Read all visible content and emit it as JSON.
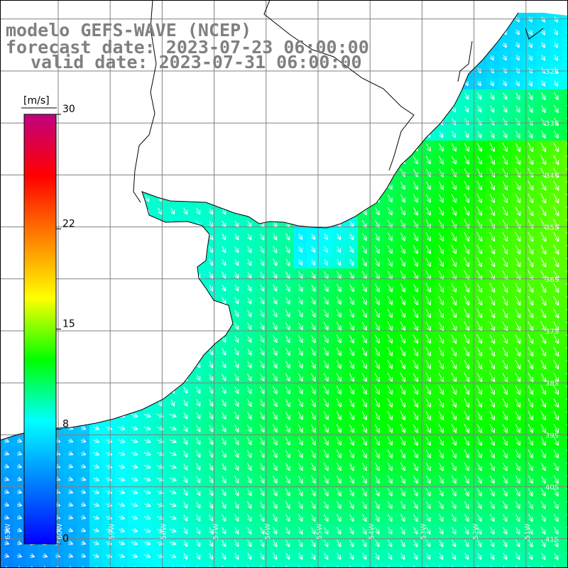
{
  "header": {
    "line1": "modelo GEFS-WAVE (NCEP)",
    "line2": "forecast date: 2023-07-23 06:00:00",
    "line3": "valid date: 2023-07-31 06:00:00"
  },
  "colorbar": {
    "unit": "[m/s]",
    "ticks": [
      {
        "label": "30",
        "value": 30
      },
      {
        "label": "22",
        "value": 22
      },
      {
        "label": "15",
        "value": 15
      },
      {
        "label": "8",
        "value": 8
      },
      {
        "label": "0",
        "value": 0
      }
    ],
    "colors": [
      "#0000ff",
      "#0080ff",
      "#00ffff",
      "#00ff00",
      "#ffff00",
      "#ff8000",
      "#ff0000",
      "#c00080"
    ]
  },
  "map": {
    "lat_labels": [
      "32S",
      "33S",
      "34S",
      "35S",
      "36S",
      "37S",
      "38S",
      "39S",
      "40S",
      "41S"
    ],
    "lon_labels": [
      "61W",
      "60W",
      "59W",
      "58W",
      "57W",
      "56W",
      "55W",
      "54W",
      "53W",
      "52W",
      "51W"
    ],
    "land_color": "#ffffff",
    "grid_color": "#808080",
    "coast_color": "#000000"
  }
}
